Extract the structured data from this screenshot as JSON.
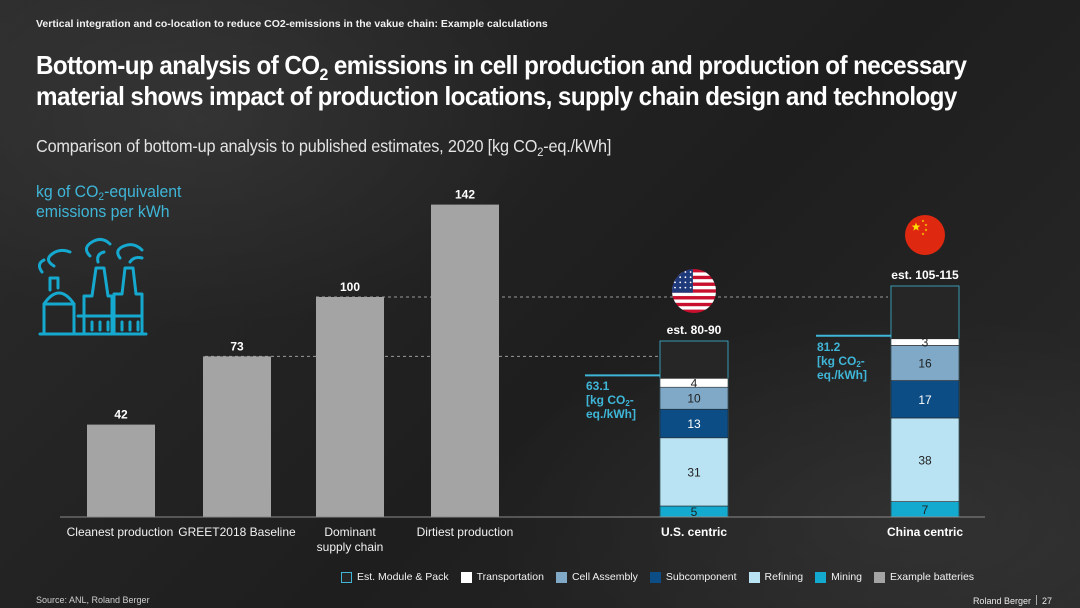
{
  "kicker": "Vertical integration and co-location to reduce CO2-emissions in the vakue chain: Example calculations",
  "title": {
    "line1_a": "Bottom-up analysis of CO",
    "line1_sub": "2",
    "line1_b": " emissions in cell production and production of necessary",
    "line2": "material shows impact of production locations, supply chain design and technology"
  },
  "subtitle": {
    "a": "Comparison of bottom-up analysis to published estimates, 2020 [kg CO",
    "sub": "2",
    "b": "-eq./kWh]"
  },
  "ylabel": {
    "line1_a": "kg of CO",
    "line1_sub": "2",
    "line1_b": "-equivalent",
    "line2": "emissions per kWh"
  },
  "icons": {
    "factory": "factory-icon",
    "us_flag": "us-flag-icon",
    "china_flag": "china-flag-icon"
  },
  "chart_data": {
    "type": "bar",
    "categories": [
      "Cleanest production",
      "GREET2018 Baseline",
      "Dominant supply chain",
      "Dirtiest production",
      "U.S. centric",
      "China centric"
    ],
    "example_batteries": {
      "categories": [
        "Cleanest production",
        "GREET2018 Baseline",
        "Dominant supply chain",
        "Dirtiest production"
      ],
      "values": [
        42,
        73,
        100,
        142
      ]
    },
    "stacked": [
      {
        "name": "U.S. centric",
        "estimate_label": "est. 80-90",
        "estimate_range": [
          80,
          90
        ],
        "segments": [
          {
            "name": "Mining",
            "value": 5
          },
          {
            "name": "Refining",
            "value": 31
          },
          {
            "name": "Subcomponent",
            "value": 13
          },
          {
            "name": "Cell Assembly",
            "value": 10
          },
          {
            "name": "Transportation",
            "value": 4
          }
        ],
        "total_label": "63.1",
        "total_unit_line1": "[kg CO",
        "total_unit_sub": "2",
        "total_unit_line1b": "-",
        "total_unit_line2": "eq./kWh]"
      },
      {
        "name": "China centric",
        "estimate_label": "est. 105-115",
        "estimate_range": [
          105,
          115
        ],
        "segments": [
          {
            "name": "Mining",
            "value": 7
          },
          {
            "name": "Refining",
            "value": 38
          },
          {
            "name": "Subcomponent",
            "value": 17
          },
          {
            "name": "Cell Assembly",
            "value": 16
          },
          {
            "name": "Transportation",
            "value": 3
          }
        ],
        "total_label": "81.2",
        "total_unit_line1": "[kg CO",
        "total_unit_sub": "2",
        "total_unit_line1b": "-",
        "total_unit_line2": "eq./kWh]"
      }
    ],
    "reference_lines": [
      73,
      100
    ],
    "ylim": [
      0,
      150
    ],
    "legend": [
      {
        "name": "Est. Module & Pack",
        "color": "#262626"
      },
      {
        "name": "Transportation",
        "color": "#ffffff"
      },
      {
        "name": "Cell Assembly",
        "color": "#7fa9c6"
      },
      {
        "name": "Subcomponent",
        "color": "#0d4d85"
      },
      {
        "name": "Refining",
        "color": "#b9e3f2"
      },
      {
        "name": "Mining",
        "color": "#14a9cf"
      },
      {
        "name": "Example batteries",
        "color": "#a4a4a4"
      }
    ],
    "colors": {
      "Mining": "#14a9cf",
      "Refining": "#b9e3f2",
      "Subcomponent": "#0d4d85",
      "Cell Assembly": "#7fa9c6",
      "Transportation": "#ffffff",
      "Example": "#a4a4a4",
      "Module": "#262626",
      "Accent": "#3fb6d8"
    }
  },
  "source": "Source: ANL, Roland Berger",
  "footer": {
    "brand": "Roland Berger",
    "page": "27"
  }
}
